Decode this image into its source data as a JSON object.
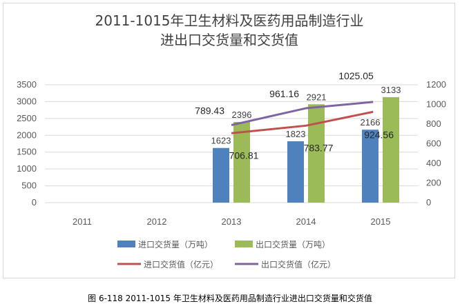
{
  "chart_data": {
    "type": "bar",
    "title": [
      "2011-1015年卫生材料及医药用品制造行业",
      "进出口交货量和交货值"
    ],
    "categories": [
      "2011",
      "2012",
      "2013",
      "2014",
      "2015"
    ],
    "left_axis": {
      "ylim": [
        0,
        3500
      ],
      "ticks": [
        "0",
        "500",
        "1000",
        "1500",
        "2000",
        "2500",
        "3000",
        "3500"
      ]
    },
    "right_axis": {
      "ylim": [
        0,
        1200
      ],
      "ticks": [
        "0",
        "200",
        "400",
        "600",
        "800",
        "1000",
        "1200"
      ]
    },
    "series": [
      {
        "name": "进口交货量（万吨）",
        "type": "bar",
        "axis": "left",
        "color": "#4f81bd",
        "values": [
          null,
          null,
          1623,
          1823,
          2166
        ],
        "labels": [
          "",
          "",
          "1623",
          "1823",
          "2166"
        ]
      },
      {
        "name": "出口交货量（万吨）",
        "type": "bar",
        "axis": "left",
        "color": "#9bbb59",
        "values": [
          null,
          null,
          2396,
          2921,
          3133
        ],
        "labels": [
          "",
          "",
          "2396",
          "2921",
          "3133"
        ]
      },
      {
        "name": "进口交货值（亿元）",
        "type": "line",
        "axis": "right",
        "color": "#c0504d",
        "x": [
          2.0,
          3.0,
          3.9
        ],
        "values": [
          706.81,
          783.77,
          924.56
        ],
        "labels": [
          "706.81",
          "783.77",
          "924.56"
        ]
      },
      {
        "name": "出口交货值（亿元）",
        "type": "line",
        "axis": "right",
        "color": "#8064a2",
        "x": [
          2.0,
          3.0,
          3.9
        ],
        "values": [
          789.43,
          961.16,
          1025.05
        ],
        "labels": [
          "789.43",
          "961.16",
          "1025.05"
        ]
      }
    ]
  },
  "caption": "图 6-118 2011-1015 年卫生材料及医药用品制造行业进出口交货量和交货值"
}
